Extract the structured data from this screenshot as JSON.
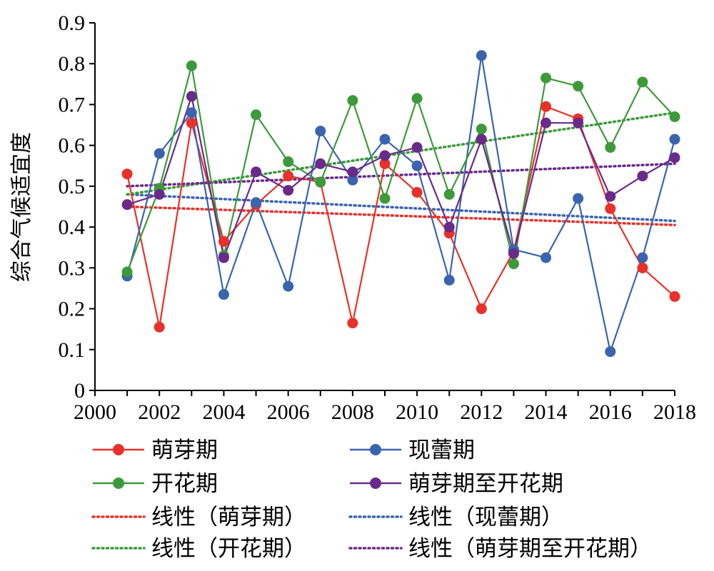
{
  "chart_data": {
    "type": "line",
    "title": "",
    "xlabel": "",
    "ylabel": "综合气候适宜度",
    "xlim": [
      2000,
      2018
    ],
    "ylim": [
      0,
      0.9
    ],
    "x_ticks": [
      "2000",
      "2002",
      "2004",
      "2006",
      "2008",
      "2010",
      "2012",
      "2014",
      "2016",
      "2018"
    ],
    "y_ticks": [
      "0",
      "0.1",
      "0.2",
      "0.3",
      "0.4",
      "0.5",
      "0.6",
      "0.7",
      "0.8",
      "0.9"
    ],
    "grid": false,
    "legend_position": "bottom",
    "x": [
      2001,
      2002,
      2003,
      2004,
      2005,
      2006,
      2007,
      2008,
      2009,
      2010,
      2011,
      2012,
      2013,
      2014,
      2015,
      2016,
      2017,
      2018
    ],
    "series": [
      {
        "name": "萌芽期",
        "color": "#e8312a",
        "values": [
          0.53,
          0.155,
          0.655,
          0.365,
          0.455,
          0.525,
          0.51,
          0.165,
          0.555,
          0.485,
          0.385,
          0.2,
          0.34,
          0.695,
          0.665,
          0.445,
          0.3,
          0.23
        ]
      },
      {
        "name": "现蕾期",
        "color": "#3a64ad",
        "values": [
          0.28,
          0.58,
          0.68,
          0.235,
          0.46,
          0.255,
          0.635,
          0.515,
          0.615,
          0.55,
          0.27,
          0.82,
          0.345,
          0.325,
          0.47,
          0.095,
          0.325,
          0.615
        ]
      },
      {
        "name": "开花期",
        "color": "#3d9a3a",
        "values": [
          0.29,
          0.495,
          0.795,
          0.33,
          0.675,
          0.56,
          0.51,
          0.71,
          0.47,
          0.715,
          0.48,
          0.64,
          0.31,
          0.765,
          0.745,
          0.595,
          0.755,
          0.67
        ]
      },
      {
        "name": "萌芽期至开花期",
        "color": "#6a2a8a",
        "values": [
          0.455,
          0.48,
          0.72,
          0.325,
          0.535,
          0.49,
          0.555,
          0.535,
          0.575,
          0.595,
          0.4,
          0.615,
          0.335,
          0.655,
          0.655,
          0.475,
          0.525,
          0.57
        ]
      }
    ],
    "trendlines": [
      {
        "name": "线性（萌芽期）",
        "color": "#e8312a",
        "start": [
          2001,
          0.45
        ],
        "end": [
          2018,
          0.405
        ]
      },
      {
        "name": "线性（现蕾期）",
        "color": "#3a64ad",
        "start": [
          2001,
          0.48
        ],
        "end": [
          2018,
          0.415
        ]
      },
      {
        "name": "线性（开花期）",
        "color": "#3d9a3a",
        "start": [
          2001,
          0.48
        ],
        "end": [
          2018,
          0.68
        ]
      },
      {
        "name": "线性（萌芽期至开花期）",
        "color": "#6a2a8a",
        "start": [
          2001,
          0.5
        ],
        "end": [
          2018,
          0.555
        ]
      }
    ]
  }
}
